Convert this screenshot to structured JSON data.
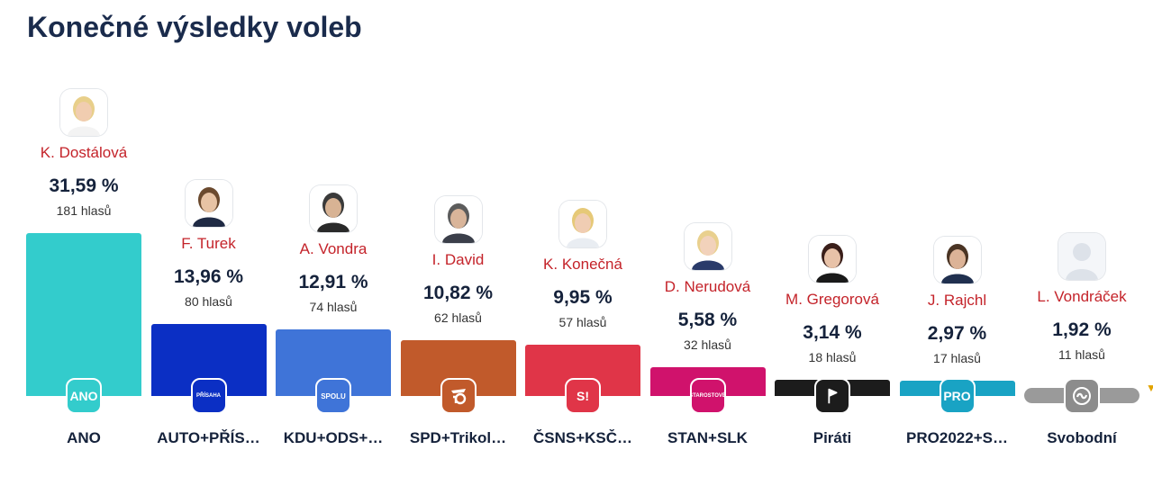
{
  "page": {
    "title": "Konečné výsledky voleb"
  },
  "colors": {
    "title": "#1a2b4c",
    "candidate": "#c4232a",
    "value": "#15223b"
  },
  "chart_data": {
    "type": "bar",
    "title": "Konečné výsledky voleb",
    "ylim": [
      0,
      35
    ],
    "grid": false,
    "categories": [
      "ANO",
      "AUTO+PŘÍS…",
      "KDU+ODS+…",
      "SPD+Trikol…",
      "ČSNS+KSČ…",
      "STAN+SLK",
      "Piráti",
      "PRO2022+S…",
      "Svobodní"
    ],
    "candidates": [
      "K. Dostálová",
      "F. Turek",
      "A. Vondra",
      "I. David",
      "K. Konečná",
      "D. Nerudová",
      "M. Gregorová",
      "J. Rajchl",
      "L. Vondráček"
    ],
    "values": [
      31.59,
      13.96,
      12.91,
      10.82,
      9.95,
      5.58,
      3.14,
      2.97,
      1.92
    ],
    "value_labels": [
      "31,59 %",
      "13,96 %",
      "12,91 %",
      "10,82 %",
      "9,95 %",
      "5,58 %",
      "3,14 %",
      "2,97 %",
      "1,92 %"
    ],
    "votes": [
      181,
      80,
      74,
      62,
      57,
      32,
      18,
      17,
      11
    ],
    "vote_labels": [
      "181 hlasů",
      "80 hlasů",
      "74 hlasů",
      "62 hlasů",
      "57 hlasů",
      "32 hlasů",
      "18 hlasů",
      "17 hlasů",
      "11 hlasů"
    ],
    "bar_colors": [
      "#33cccc",
      "#0b2fc4",
      "#3f74d8",
      "#c15a2b",
      "#e03548",
      "#d0126c",
      "#1c1c1c",
      "#19a3c4",
      "#9a9a9a"
    ],
    "logos": [
      {
        "icon": "ano-logo-icon",
        "text": "ANO",
        "bg": "#33cccc"
      },
      {
        "icon": "prisaha-logo-icon",
        "text": "PŘÍSAHA",
        "bg": "#0b2fc4"
      },
      {
        "icon": "spolu-logo-icon",
        "text": "SPOLU",
        "bg": "#3f74d8"
      },
      {
        "icon": "spd-trikolora-logo-icon",
        "text": "",
        "bg": "#c15a2b"
      },
      {
        "icon": "stacilo-logo-icon",
        "text": "S!",
        "bg": "#e03548"
      },
      {
        "icon": "starostove-logo-icon",
        "text": "STAROSTOVÉ",
        "bg": "#d0126c"
      },
      {
        "icon": "pirati-logo-icon",
        "text": "",
        "bg": "#1c1c1c"
      },
      {
        "icon": "pro-logo-icon",
        "text": "PRO",
        "bg": "#19a3c4"
      },
      {
        "icon": "svobodni-logo-icon",
        "text": "",
        "bg": "#8c8c8c"
      }
    ],
    "avatars": [
      {
        "icon": "candidate-photo-icon",
        "skin": "#f1cdb0",
        "hair": "#e8cf8a",
        "shirt": "#f3f3f3"
      },
      {
        "icon": "candidate-photo-icon",
        "skin": "#e7c3a4",
        "hair": "#6b4a2e",
        "shirt": "#1f2a44"
      },
      {
        "icon": "candidate-photo-icon",
        "skin": "#d8b394",
        "hair": "#3a3a3a",
        "shirt": "#2a2a2a"
      },
      {
        "icon": "candidate-photo-icon",
        "skin": "#d9b59a",
        "hair": "#5c5c5c",
        "shirt": "#3b3f4a"
      },
      {
        "icon": "candidate-photo-icon",
        "skin": "#f0cdb3",
        "hair": "#e6c978",
        "shirt": "#e9edf2"
      },
      {
        "icon": "candidate-photo-icon",
        "skin": "#f2d2bb",
        "hair": "#e9d08e",
        "shirt": "#2a3b6a"
      },
      {
        "icon": "candidate-photo-icon",
        "skin": "#e8c2a8",
        "hair": "#3a1f1a",
        "shirt": "#1a1a1a"
      },
      {
        "icon": "candidate-photo-icon",
        "skin": "#dcb397",
        "hair": "#4a3424",
        "shirt": "#20304f"
      },
      {
        "icon": "placeholder-avatar-icon",
        "skin": "#e4e8ee",
        "hair": "#e4e8ee",
        "shirt": "#e4e8ee"
      }
    ]
  }
}
